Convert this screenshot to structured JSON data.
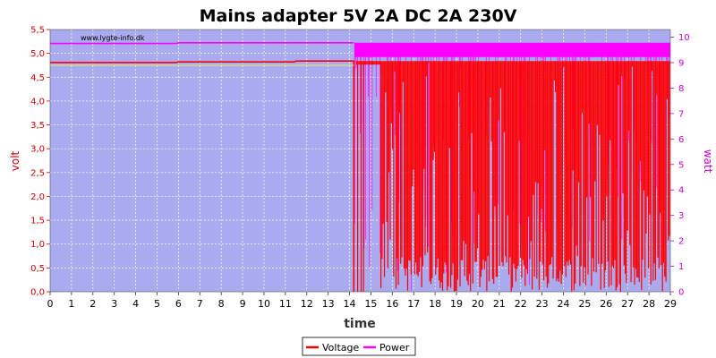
{
  "chart_data": {
    "type": "line",
    "title": "Mains adapter 5V 2A DC 2A 230V",
    "watermark": "www.lygte-info.dk",
    "xlabel": "time",
    "ylabel": "volt",
    "y2label": "watt",
    "xlim": [
      0,
      29
    ],
    "ylim": [
      0,
      5.5
    ],
    "y2lim": [
      0,
      10.3
    ],
    "x_ticks": [
      "0",
      "1",
      "2",
      "3",
      "4",
      "5",
      "6",
      "7",
      "8",
      "9",
      "10",
      "11",
      "12",
      "13",
      "14",
      "15",
      "16",
      "17",
      "18",
      "19",
      "20",
      "21",
      "22",
      "23",
      "24",
      "25",
      "26",
      "27",
      "28",
      "29"
    ],
    "y_ticks": [
      "0,0",
      "0,5",
      "1,0",
      "1,5",
      "2,0",
      "2,5",
      "3,0",
      "3,5",
      "4,0",
      "4,5",
      "5,0",
      "5,5"
    ],
    "y2_ticks": [
      "0",
      "1",
      "2",
      "3",
      "4",
      "5",
      "6",
      "7",
      "8",
      "9",
      "10"
    ],
    "grid": true,
    "legend_position": "bottom",
    "colors": {
      "voltage": "#ff0000",
      "power": "#ff00ff",
      "plot_bg": "#aaaaee",
      "grid": "#ffffff"
    },
    "series": [
      {
        "name": "Voltage",
        "axis": "left",
        "x": [
          0,
          5.9,
          6.0,
          11.4,
          11.5,
          14.2,
          14.2,
          14.3,
          16.5,
          20,
          24,
          29
        ],
        "y": [
          4.81,
          4.81,
          4.82,
          4.82,
          4.84,
          4.84,
          0.0,
          4.84,
          4.84,
          4.84,
          4.84,
          4.84
        ],
        "unstable_after": 14.2,
        "unstable_min": 0.0
      },
      {
        "name": "Power",
        "axis": "right",
        "x": [
          0,
          5.9,
          6.0,
          14.2,
          14.3,
          29
        ],
        "y": [
          9.75,
          9.75,
          9.78,
          9.78,
          9.78,
          9.78
        ],
        "unstable_after": 14.2,
        "unstable_min": 0.0
      }
    ]
  }
}
